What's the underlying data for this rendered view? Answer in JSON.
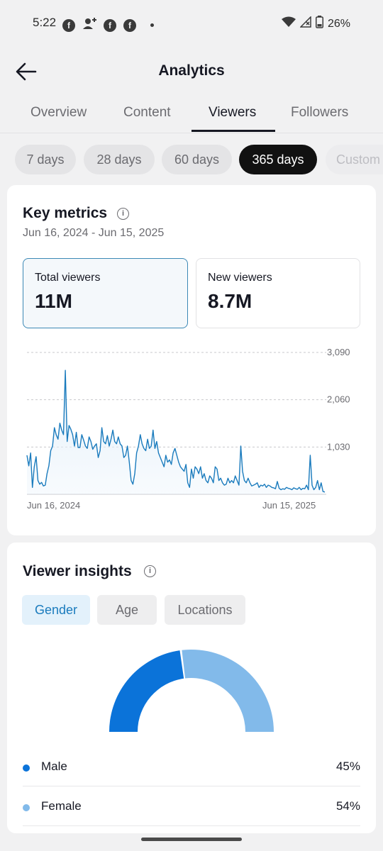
{
  "status_bar": {
    "time": "5:22",
    "battery": "26%",
    "notification_icons": [
      "facebook-icon",
      "add-contact-icon",
      "facebook-icon",
      "facebook-icon"
    ]
  },
  "header": {
    "title": "Analytics"
  },
  "tabs": [
    {
      "label": "Overview",
      "active": false
    },
    {
      "label": "Content",
      "active": false
    },
    {
      "label": "Viewers",
      "active": true
    },
    {
      "label": "Followers",
      "active": false
    }
  ],
  "date_filters": [
    {
      "label": "7 days",
      "active": false
    },
    {
      "label": "28 days",
      "active": false
    },
    {
      "label": "60 days",
      "active": false
    },
    {
      "label": "365 days",
      "active": true
    },
    {
      "label": "Custom",
      "active": false
    }
  ],
  "key_metrics": {
    "title": "Key metrics",
    "date_range": "Jun 16, 2024 - Jun 15, 2025",
    "metrics": [
      {
        "label": "Total viewers",
        "value": "11M",
        "selected": true
      },
      {
        "label": "New viewers",
        "value": "8.7M",
        "selected": false
      }
    ]
  },
  "chart_data": {
    "type": "line",
    "title": "",
    "xlabel": "",
    "ylabel": "",
    "ylim": [
      0,
      3090
    ],
    "y_ticks": [
      "3,090",
      "2,060",
      "1,030"
    ],
    "x_tick_labels": [
      "Jun 16, 2024",
      "Jun 15, 2025"
    ],
    "grid": true,
    "line_color": "#1a7bbd",
    "fill_color": "#e6f1fa",
    "series": [
      {
        "values": [
          850,
          620,
          900,
          150,
          600,
          820,
          300,
          220,
          260,
          180,
          200,
          450,
          620,
          950,
          1050,
          1450,
          1300,
          1200,
          1550,
          1400,
          1300,
          2700,
          1150,
          1500,
          1420,
          1300,
          1050,
          1350,
          1020,
          1020,
          1300,
          1180,
          1050,
          1000,
          1250,
          1150,
          980,
          1050,
          1100,
          800,
          950,
          1450,
          1150,
          1100,
          1280,
          1050,
          1200,
          1400,
          1150,
          1100,
          1250,
          1100,
          1050,
          800,
          850,
          1050,
          700,
          300,
          220,
          450,
          900,
          1050,
          1300,
          1100,
          1000,
          950,
          1200,
          1000,
          1050,
          1400,
          1000,
          1150,
          900,
          800,
          700,
          600,
          850,
          700,
          750,
          650,
          900,
          1000,
          850,
          700,
          600,
          550,
          500,
          650,
          250,
          150,
          550,
          350,
          600,
          550,
          450,
          600,
          350,
          450,
          300,
          250,
          400,
          350,
          250,
          600,
          550,
          300,
          350,
          250,
          200,
          220,
          350,
          250,
          300,
          250,
          400,
          300,
          200,
          1050,
          500,
          300,
          250,
          350,
          250,
          180,
          200,
          220,
          250,
          150,
          200,
          180,
          220,
          150,
          200,
          180,
          150,
          140,
          120,
          280,
          130,
          100,
          120,
          110,
          150,
          130,
          120,
          100,
          140,
          120,
          110,
          150,
          100,
          130,
          120,
          200,
          100,
          850,
          200,
          100,
          150,
          300,
          100,
          250,
          60,
          50
        ]
      }
    ]
  },
  "viewer_insights": {
    "title": "Viewer insights",
    "segments": [
      {
        "label": "Gender",
        "active": true
      },
      {
        "label": "Age",
        "active": false
      },
      {
        "label": "Locations",
        "active": false
      }
    ],
    "gender_chart": {
      "type": "pie",
      "slices": [
        {
          "label": "Male",
          "value": 45,
          "color": "#0b73d9"
        },
        {
          "label": "Female",
          "value": 54,
          "color": "#82baea"
        }
      ]
    },
    "legend": [
      {
        "label": "Male",
        "percent": "45%",
        "color": "#0b73d9"
      },
      {
        "label": "Female",
        "percent": "54%",
        "color": "#82baea"
      }
    ]
  }
}
